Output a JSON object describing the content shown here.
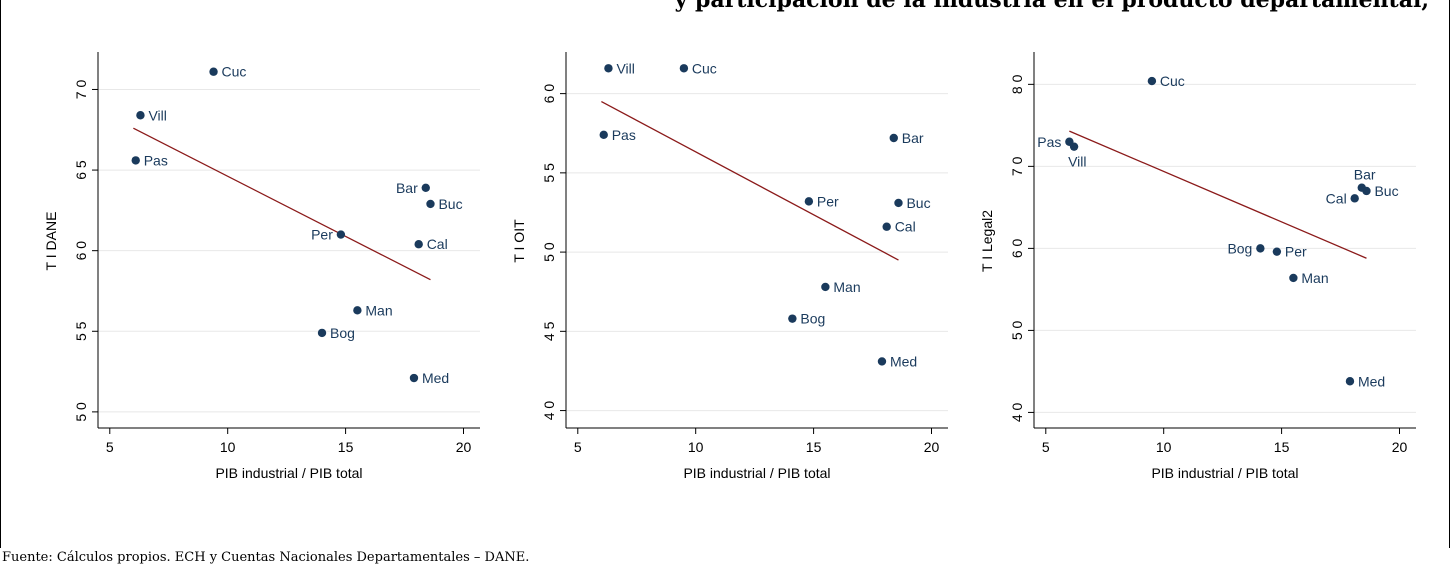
{
  "title": "y participación de la industria en el producto departamental,",
  "footnote": "Fuente: Cálculos propios. ECH y Cuentas Nacionales Departamentales – DANE.",
  "colors": {
    "point": "#1a3a5c",
    "fit_line": "#8b1a1a",
    "grid": "#e8e8e8",
    "panel_bg": "#ffffff",
    "outer_bg": "#f5f8fa"
  },
  "chart_data": [
    {
      "type": "scatter",
      "ylabel": "T I DANE",
      "xlabel": "PIB industrial / PIB total",
      "xlim": [
        4.5,
        20.7
      ],
      "ylim": [
        49.0,
        72.2
      ],
      "xticks": [
        5,
        10,
        15,
        20
      ],
      "yticks": [
        50,
        55,
        60,
        65,
        70
      ],
      "ytick_labels": [
        "5 0",
        "5 5",
        "6 0",
        "6 5",
        "7 0"
      ],
      "points": [
        {
          "label": "Cuc",
          "x": 9.4,
          "y": 71.1,
          "pos": "right"
        },
        {
          "label": "Vill",
          "x": 6.3,
          "y": 68.4,
          "pos": "right"
        },
        {
          "label": "Pas",
          "x": 6.1,
          "y": 65.6,
          "pos": "right"
        },
        {
          "label": "Bar",
          "x": 18.4,
          "y": 63.9,
          "pos": "left"
        },
        {
          "label": "Buc",
          "x": 18.6,
          "y": 62.9,
          "pos": "right"
        },
        {
          "label": "Per",
          "x": 14.8,
          "y": 61.0,
          "pos": "left"
        },
        {
          "label": "Cal",
          "x": 18.1,
          "y": 60.4,
          "pos": "right"
        },
        {
          "label": "Man",
          "x": 15.5,
          "y": 56.3,
          "pos": "right"
        },
        {
          "label": "Bog",
          "x": 14.0,
          "y": 54.9,
          "pos": "right"
        },
        {
          "label": "Med",
          "x": 17.9,
          "y": 52.1,
          "pos": "right"
        }
      ],
      "fit": {
        "x": [
          6.0,
          18.6
        ],
        "y": [
          67.6,
          58.2
        ]
      }
    },
    {
      "type": "scatter",
      "ylabel": "T I OIT",
      "xlabel": "PIB industrial / PIB total",
      "xlim": [
        4.5,
        20.7
      ],
      "ylim": [
        38.9,
        62.5
      ],
      "xticks": [
        5,
        10,
        15,
        20
      ],
      "yticks": [
        40,
        45,
        50,
        55,
        60
      ],
      "ytick_labels": [
        "4 0",
        "4 5",
        "5 0",
        "5 5",
        "6 0"
      ],
      "points": [
        {
          "label": "Vill",
          "x": 6.3,
          "y": 61.6,
          "pos": "right"
        },
        {
          "label": "Cuc",
          "x": 9.5,
          "y": 61.6,
          "pos": "right"
        },
        {
          "label": "Pas",
          "x": 6.1,
          "y": 57.4,
          "pos": "right"
        },
        {
          "label": "Bar",
          "x": 18.4,
          "y": 57.2,
          "pos": "right"
        },
        {
          "label": "Per",
          "x": 14.8,
          "y": 53.2,
          "pos": "right"
        },
        {
          "label": "Buc",
          "x": 18.6,
          "y": 53.1,
          "pos": "right"
        },
        {
          "label": "Cal",
          "x": 18.1,
          "y": 51.6,
          "pos": "right"
        },
        {
          "label": "Man",
          "x": 15.5,
          "y": 47.8,
          "pos": "right"
        },
        {
          "label": "Bog",
          "x": 14.1,
          "y": 45.8,
          "pos": "right"
        },
        {
          "label": "Med",
          "x": 17.9,
          "y": 43.1,
          "pos": "right"
        }
      ],
      "fit": {
        "x": [
          6.0,
          18.6
        ],
        "y": [
          59.5,
          49.5
        ]
      }
    },
    {
      "type": "scatter",
      "ylabel": "T I Legal2",
      "xlabel": "PIB industrial / PIB total",
      "xlim": [
        4.5,
        20.7
      ],
      "ylim": [
        38.1,
        83.7
      ],
      "xticks": [
        5,
        10,
        15,
        20
      ],
      "yticks": [
        40,
        50,
        60,
        70,
        80
      ],
      "ytick_labels": [
        "4 0",
        "5 0",
        "6 0",
        "7 0",
        "8 0"
      ],
      "points": [
        {
          "label": "Cuc",
          "x": 9.5,
          "y": 80.4,
          "pos": "right"
        },
        {
          "label": "Pas",
          "x": 6.0,
          "y": 73.0,
          "pos": "left"
        },
        {
          "label": "Vill",
          "x": 6.2,
          "y": 72.4,
          "pos": "below"
        },
        {
          "label": "Bar",
          "x": 18.4,
          "y": 67.4,
          "pos": "above"
        },
        {
          "label": "Buc",
          "x": 18.6,
          "y": 67.0,
          "pos": "right"
        },
        {
          "label": "Cal",
          "x": 18.1,
          "y": 66.1,
          "pos": "left"
        },
        {
          "label": "Bog",
          "x": 14.1,
          "y": 60.0,
          "pos": "left"
        },
        {
          "label": "Per",
          "x": 14.8,
          "y": 59.6,
          "pos": "right"
        },
        {
          "label": "Man",
          "x": 15.5,
          "y": 56.4,
          "pos": "right"
        },
        {
          "label": "Med",
          "x": 17.9,
          "y": 43.8,
          "pos": "right"
        }
      ],
      "fit": {
        "x": [
          6.0,
          18.6
        ],
        "y": [
          74.3,
          58.8
        ]
      }
    }
  ]
}
